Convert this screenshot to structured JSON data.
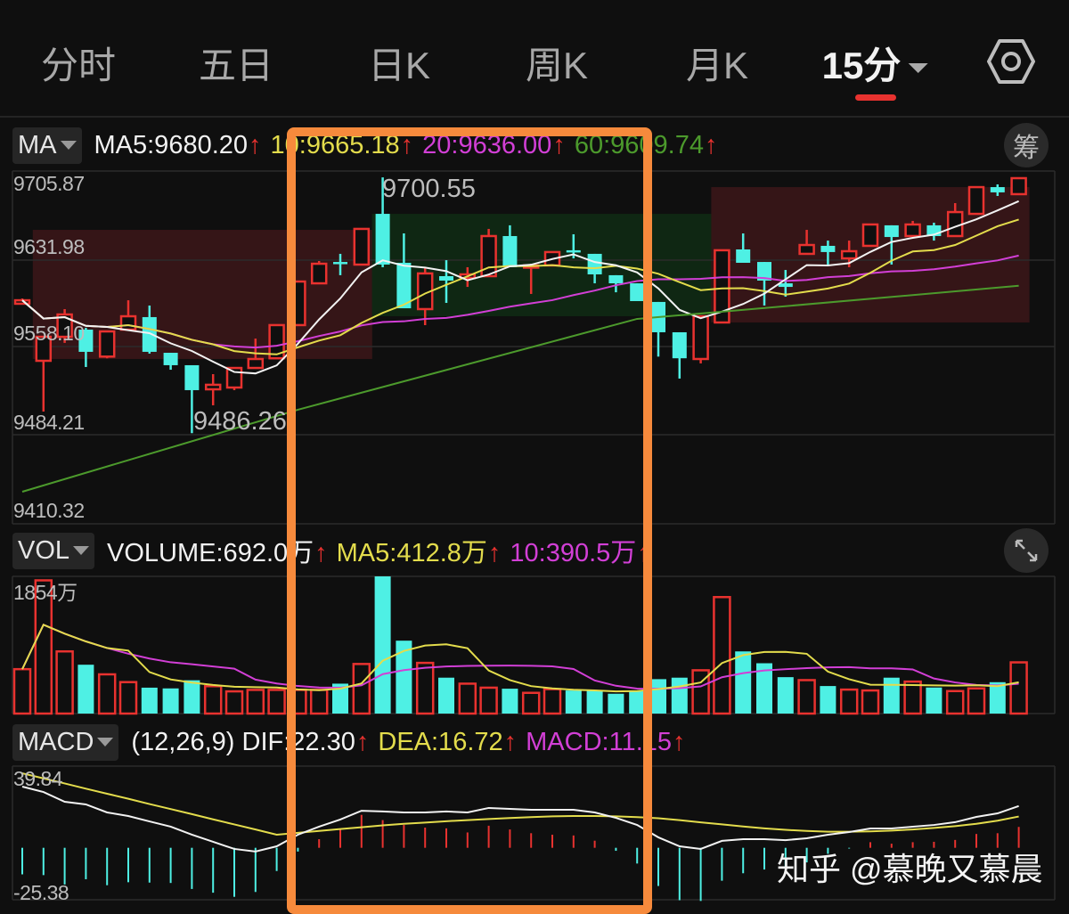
{
  "tabs": [
    {
      "label": "分时"
    },
    {
      "label": "五日"
    },
    {
      "label": "日K"
    },
    {
      "label": "周K"
    },
    {
      "label": "月K"
    },
    {
      "label": "15分",
      "active": true,
      "has_dropdown": true
    }
  ],
  "header": {
    "settings_icon": "settings-hexagon-icon"
  },
  "main_legend": {
    "selector": "MA",
    "items": [
      {
        "label": "MA5:9680.20",
        "color": "#f2f2f2"
      },
      {
        "label": "10:9665.18",
        "color": "#e3dc4c"
      },
      {
        "label": "20:9636.00",
        "color": "#d23fd6"
      },
      {
        "label": "60:9609.74",
        "color": "#4c9a2c"
      }
    ],
    "arrow": "↑",
    "chip_button": "筹"
  },
  "vol_legend": {
    "selector": "VOL",
    "items": [
      {
        "label": "VOLUME:692.0万",
        "color": "#f2f2f2"
      },
      {
        "label": "MA5:412.8万",
        "color": "#e3dc4c"
      },
      {
        "label": "10:390.5万",
        "color": "#d23fd6"
      }
    ],
    "arrow": "↑",
    "expand_icon": "expand-arrows-icon"
  },
  "macd_legend": {
    "selector": "MACD",
    "items": [
      {
        "label": "(12,26,9) DIF:22.30",
        "color": "#f2f2f2"
      },
      {
        "label": "DEA:16.72",
        "color": "#e3dc4c"
      },
      {
        "label": "MACD:11.15",
        "color": "#d23fd6"
      }
    ],
    "arrow": "↑"
  },
  "watermark": "知乎 @慕晚又慕晨",
  "colors": {
    "up": "#e8322f",
    "down": "#4ef0e4",
    "ma5": "#f2f2f2",
    "ma10": "#e3dc4c",
    "ma20": "#d23fd6",
    "ma60": "#4c9a2c",
    "highlight_box": "#f68a3c",
    "zone_red": "#3a1618",
    "zone_green": "#0f2a14",
    "background": "#0f0f0f"
  },
  "chart_data": [
    {
      "type": "candlestick",
      "period": "15分",
      "y_tick_labels": [
        "9705.87",
        "9631.98",
        "9558.10",
        "9484.21",
        "9410.32"
      ],
      "ylim": [
        9410.32,
        9705.87
      ],
      "grid": true,
      "max_label": "9700.55",
      "min_label": "9486.26",
      "ohlc": [
        [
          9594.7,
          9599.1,
          9593.9,
          9597.6
        ],
        [
          9546.9,
          9567.0,
          9504.4,
          9567.0
        ],
        [
          9567.0,
          9590.2,
          9561.9,
          9585.7
        ],
        [
          9573.0,
          9574.5,
          9541.7,
          9554.4
        ],
        [
          9550.4,
          9571.5,
          9549.0,
          9571.5
        ],
        [
          9573.0,
          9597.6,
          9573.0,
          9584.2
        ],
        [
          9583.5,
          9593.2,
          9552.9,
          9554.4
        ],
        [
          9553.6,
          9553.6,
          9539.4,
          9543.2
        ],
        [
          9543.2,
          9543.2,
          9486.26,
          9522.3
        ],
        [
          9523.0,
          9535.7,
          9509.6,
          9526.8
        ],
        [
          9524.5,
          9540.9,
          9522.3,
          9540.9
        ],
        [
          9540.9,
          9565.5,
          9540.9,
          9548.4
        ],
        [
          9549.0,
          9576.8,
          9549.0,
          9576.8
        ],
        [
          9576.8,
          9613.3,
          9576.8,
          9613.3
        ],
        [
          9611.8,
          9630.5,
          9611.8,
          9628.2
        ],
        [
          9629.7,
          9636.5,
          9618.6,
          9629.0
        ],
        [
          9627.5,
          9657.4,
          9627.5,
          9657.4
        ],
        [
          9670.0,
          9700.55,
          9625.3,
          9627.5
        ],
        [
          9629.0,
          9653.6,
          9590.9,
          9590.9
        ],
        [
          9590.2,
          9625.3,
          9576.8,
          9620.1
        ],
        [
          9617.8,
          9631.2,
          9595.4,
          9614.1
        ],
        [
          9616.3,
          9625.3,
          9608.8,
          9619.3
        ],
        [
          9617.8,
          9657.4,
          9617.8,
          9651.4
        ],
        [
          9651.4,
          9660.4,
          9625.3,
          9625.3
        ],
        [
          9625.3,
          9628.2,
          9602.9,
          9626.8
        ],
        [
          9626.8,
          9638.0,
          9626.8,
          9638.0
        ],
        [
          9639.5,
          9652.9,
          9632.7,
          9638.7
        ],
        [
          9636.5,
          9636.5,
          9611.8,
          9619.3
        ],
        [
          9618.6,
          9618.6,
          9604.3,
          9611.8
        ],
        [
          9611.8,
          9611.8,
          9596.9,
          9596.9
        ],
        [
          9596.2,
          9596.2,
          9550.4,
          9570.8
        ],
        [
          9570.8,
          9570.8,
          9532.0,
          9549.0
        ],
        [
          9548.4,
          9584.2,
          9544.7,
          9584.2
        ],
        [
          9579.0,
          9639.5,
          9579.0,
          9639.5
        ],
        [
          9640.2,
          9653.6,
          9629.0,
          9629.0
        ],
        [
          9629.7,
          9629.7,
          9593.2,
          9614.1
        ],
        [
          9611.8,
          9623.0,
          9600.6,
          9608.8
        ],
        [
          9636.5,
          9656.6,
          9636.5,
          9643.9
        ],
        [
          9643.2,
          9647.6,
          9626.8,
          9638.0
        ],
        [
          9632.7,
          9647.6,
          9625.3,
          9638.7
        ],
        [
          9643.2,
          9661.1,
          9643.2,
          9661.1
        ],
        [
          9660.4,
          9660.4,
          9627.5,
          9650.6
        ],
        [
          9651.4,
          9664.1,
          9651.4,
          9661.1
        ],
        [
          9660.4,
          9662.6,
          9647.6,
          9651.4
        ],
        [
          9651.4,
          9679.0,
          9651.4,
          9671.5
        ],
        [
          9670.0,
          9692.4,
          9670.0,
          9692.4
        ],
        [
          9692.4,
          9694.7,
          9685.0,
          9688.0
        ],
        [
          9686.5,
          9699.9,
          9686.5,
          9699.9
        ]
      ],
      "ma60_points": [
        [
          0,
          9437.2
        ],
        [
          13,
          9505.9
        ],
        [
          29,
          9582.0
        ],
        [
          33,
          9588.0
        ],
        [
          47,
          9609.74
        ]
      ],
      "zones": [
        {
          "color": "red",
          "start": 1,
          "end": 16,
          "low": 9548.4,
          "high": 9656.6
        },
        {
          "color": "green",
          "start": 17,
          "end": 32,
          "low": 9584.2,
          "high": 9670.0
        },
        {
          "color": "red",
          "start": 33,
          "end": 47,
          "low": 9579.0,
          "high": 9692.4
        }
      ]
    },
    {
      "type": "bar",
      "unit": "万",
      "y_tick_labels": [
        "1854万"
      ],
      "ylim": [
        0,
        1854
      ],
      "values": [
        600,
        1800,
        840,
        660,
        530,
        425,
        350,
        340,
        450,
        370,
        300,
        320,
        320,
        320,
        320,
        404,
        670,
        1854,
        985,
        685,
        485,
        404,
        350,
        336,
        280,
        330,
        312,
        308,
        268,
        300,
        465,
        485,
        585,
        1574,
        840,
        680,
        492,
        452,
        372,
        324,
        312,
        485,
        432,
        352,
        304,
        340,
        424,
        692
      ]
    },
    {
      "type": "line",
      "params": "(12,26,9)",
      "y_tick_labels": [
        "39.84",
        "-25.38"
      ],
      "ylim": [
        -25.38,
        39.84
      ],
      "dif": [
        32.7,
        29.8,
        24.6,
        23.2,
        18.9,
        17.0,
        14.1,
        11.3,
        7.0,
        3.2,
        -0.6,
        -2.0,
        0.8,
        7.0,
        11.3,
        15.1,
        19.8,
        19.4,
        18.9,
        18.9,
        19.4,
        18.9,
        21.3,
        20.8,
        20.3,
        20.3,
        20.3,
        18.9,
        16.0,
        12.2,
        5.6,
        0.8,
        -0.6,
        3.7,
        4.6,
        4.6,
        4.1,
        5.1,
        7.0,
        8.4,
        10.3,
        10.3,
        11.3,
        12.2,
        13.7,
        16.5,
        18.4,
        22.3
      ],
      "dea": [
        39.8,
        37.1,
        34.4,
        31.6,
        28.9,
        26.2,
        23.4,
        20.7,
        18.0,
        15.2,
        12.5,
        9.8,
        7.0,
        8.0,
        9.0,
        10.0,
        11.0,
        12.0,
        12.8,
        13.5,
        14.2,
        14.8,
        15.4,
        15.9,
        16.4,
        16.8,
        17.0,
        17.0,
        16.8,
        16.4,
        15.8,
        14.8,
        13.6,
        12.5,
        11.4,
        10.4,
        9.6,
        9.0,
        8.6,
        8.6,
        8.8,
        9.2,
        9.8,
        10.6,
        11.6,
        12.8,
        14.5,
        16.72
      ]
    }
  ]
}
